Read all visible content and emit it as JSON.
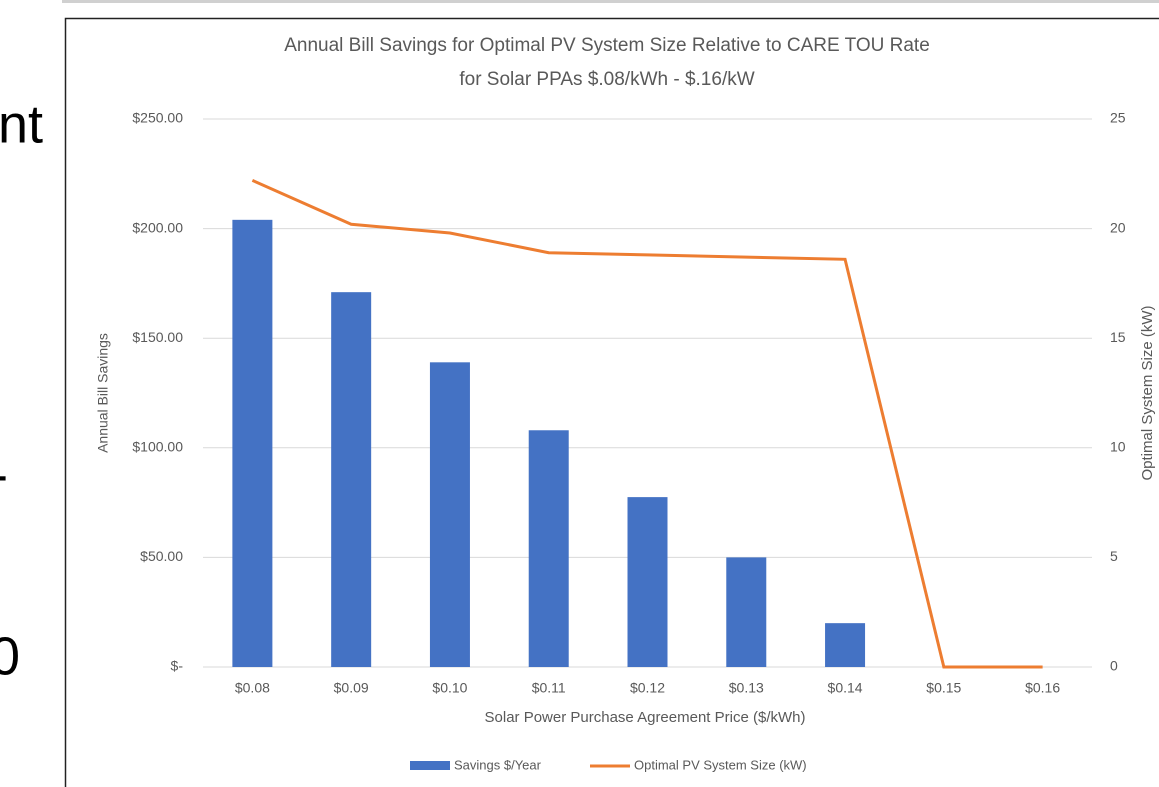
{
  "left_fragments": [
    "nt",
    "-",
    "0"
  ],
  "chart_data": {
    "type": "bar_line",
    "title": [
      "Annual Bill Savings for Optimal PV System Size Relative to CARE TOU Rate",
      "for Solar PPAs $.08/kWh - $.16/kW"
    ],
    "x_label": "Solar Power Purchase Agreement Price ($/kWh)",
    "y_label": "Annual Bill Savings",
    "y2_label": "Optimal System Size (kW)",
    "categories": [
      "$0.08",
      "$0.09",
      "$0.10",
      "$0.11",
      "$0.12",
      "$0.13",
      "$0.14",
      "$0.15",
      "$0.16"
    ],
    "series": [
      {
        "name": "Savings $/Year",
        "type": "bar",
        "color": "#4472c4",
        "values": [
          204,
          171,
          139,
          108,
          77.5,
          50,
          20,
          0,
          0
        ]
      },
      {
        "name": "Optimal PV System Size (kW)",
        "type": "line",
        "axis": "y2",
        "color": "#ed7d31",
        "values": [
          22.2,
          20.2,
          19.8,
          18.9,
          18.8,
          18.7,
          18.6,
          0,
          0
        ]
      }
    ],
    "ylim": [
      0,
      250
    ],
    "yticks": [
      {
        "value": 0,
        "label": "$-"
      },
      {
        "value": 50,
        "label": "$50.00"
      },
      {
        "value": 100,
        "label": "$100.00"
      },
      {
        "value": 150,
        "label": "$150.00"
      },
      {
        "value": 200,
        "label": "$200.00"
      },
      {
        "value": 250,
        "label": "$250.00"
      }
    ],
    "y2lim": [
      0,
      25
    ],
    "y2ticks": [
      0,
      5,
      10,
      15,
      20,
      25
    ],
    "grid": true,
    "legend": "bottom"
  }
}
